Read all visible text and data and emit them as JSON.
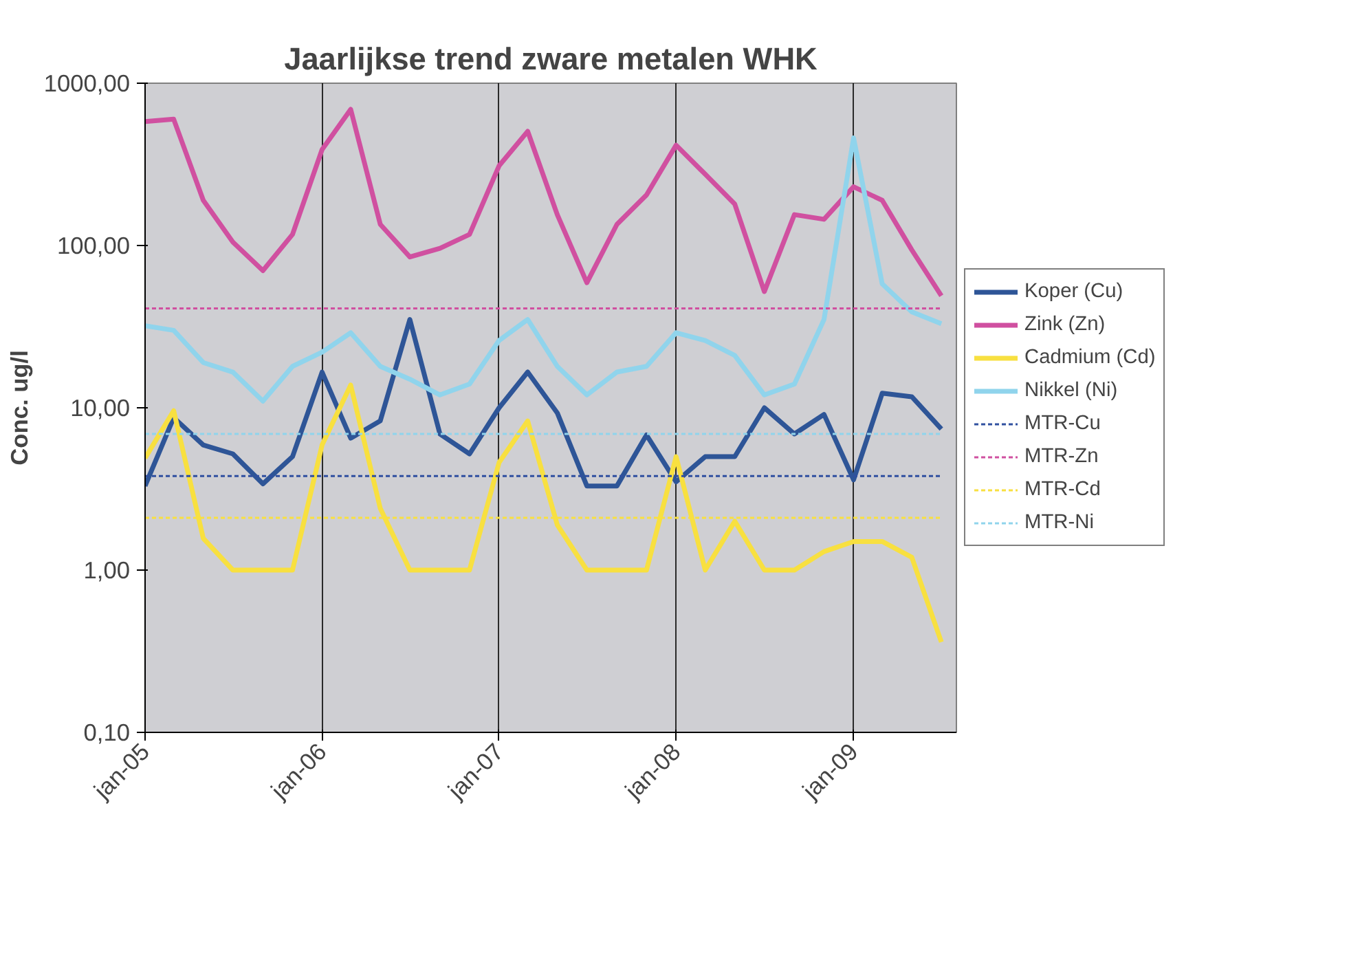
{
  "chart_data": {
    "type": "line",
    "title": "Jaarlijkse trend zware metalen WHK",
    "ylabel": "Conc. ug/l",
    "x": [
      "2005-01",
      "2005-03",
      "2005-05",
      "2005-07",
      "2005-09",
      "2005-11",
      "2006-01",
      "2006-03",
      "2006-05",
      "2006-07",
      "2006-09",
      "2006-11",
      "2007-01",
      "2007-03",
      "2007-05",
      "2007-07",
      "2007-09",
      "2007-11",
      "2008-01",
      "2008-03",
      "2008-05",
      "2008-07",
      "2008-09",
      "2008-11",
      "2009-01",
      "2009-03",
      "2009-05",
      "2009-07"
    ],
    "series": [
      {
        "name": "Koper (Cu)",
        "color": "#2e5597",
        "values": [
          3.3,
          8.7,
          5.9,
          5.2,
          3.4,
          5.0,
          16.6,
          6.5,
          8.3,
          35,
          6.9,
          5.2,
          10,
          16.6,
          9.3,
          3.3,
          3.3,
          6.8,
          3.5,
          5.0,
          5.0,
          10,
          6.9,
          9.1,
          3.6,
          12.3,
          11.7,
          7.4
        ]
      },
      {
        "name": "Zink (Zn)",
        "color": "#d050a0",
        "values": [
          580,
          600,
          190,
          105,
          70,
          117,
          390,
          690,
          135,
          85,
          96,
          117,
          310,
          505,
          155,
          59,
          135,
          205,
          415,
          275,
          180,
          52,
          155,
          145,
          230,
          190,
          94,
          49
        ]
      },
      {
        "name": "Cadmium (Cd)",
        "color": "#f8e040",
        "values": [
          4.9,
          9.6,
          1.57,
          1.0,
          1.0,
          1.0,
          5.9,
          13.8,
          2.4,
          1.0,
          1.0,
          1.0,
          4.6,
          8.3,
          1.9,
          1.0,
          1.0,
          1.0,
          5.0,
          1.0,
          2.0,
          1.0,
          1.0,
          1.3,
          1.5,
          1.5,
          1.2,
          0.36
        ]
      },
      {
        "name": "Nikkel (Ni)",
        "color": "#90d4ec",
        "values": [
          32,
          30,
          19,
          16.6,
          11,
          18,
          22,
          29,
          18,
          15,
          12,
          14,
          26,
          35,
          18,
          12,
          16.6,
          18,
          29,
          26,
          21,
          12,
          14,
          35,
          460,
          58,
          39,
          33
        ]
      },
      {
        "name": "MTR-Cu",
        "color": "#3050a0",
        "line_style": "dashed",
        "values": [
          3.8,
          3.8,
          3.8,
          3.8,
          3.8,
          3.8,
          3.8,
          3.8,
          3.8,
          3.8,
          3.8,
          3.8,
          3.8,
          3.8,
          3.8,
          3.8,
          3.8,
          3.8,
          3.8,
          3.8,
          3.8,
          3.8,
          3.8,
          3.8,
          3.8,
          3.8,
          3.8,
          3.8
        ]
      },
      {
        "name": "MTR-Zn",
        "color": "#d050a0",
        "line_style": "dashed",
        "values": [
          41,
          41,
          41,
          41,
          41,
          41,
          41,
          41,
          41,
          41,
          41,
          41,
          41,
          41,
          41,
          41,
          41,
          41,
          41,
          41,
          41,
          41,
          41,
          41,
          41,
          41,
          41,
          41
        ]
      },
      {
        "name": "MTR-Cd",
        "color": "#f8e040",
        "line_style": "dashed",
        "values": [
          2.1,
          2.1,
          2.1,
          2.1,
          2.1,
          2.1,
          2.1,
          2.1,
          2.1,
          2.1,
          2.1,
          2.1,
          2.1,
          2.1,
          2.1,
          2.1,
          2.1,
          2.1,
          2.1,
          2.1,
          2.1,
          2.1,
          2.1,
          2.1,
          2.1,
          2.1,
          2.1,
          2.1
        ]
      },
      {
        "name": "MTR-Ni",
        "color": "#90d4ec",
        "line_style": "dashed",
        "values": [
          6.9,
          6.9,
          6.9,
          6.9,
          6.9,
          6.9,
          6.9,
          6.9,
          6.9,
          6.9,
          6.9,
          6.9,
          6.9,
          6.9,
          6.9,
          6.9,
          6.9,
          6.9,
          6.9,
          6.9,
          6.9,
          6.9,
          6.9,
          6.9,
          6.9,
          6.9,
          6.9,
          6.9
        ]
      }
    ],
    "xlim": [
      "2005-01",
      "2009-08"
    ],
    "xticks": [
      {
        "value": "2005-01",
        "label": "jan-05"
      },
      {
        "value": "2006-01",
        "label": "jan-06"
      },
      {
        "value": "2007-01",
        "label": "jan-07"
      },
      {
        "value": "2008-01",
        "label": "jan-08"
      },
      {
        "value": "2009-01",
        "label": "jan-09"
      }
    ],
    "ylim": [
      0.1,
      1000
    ],
    "log": true,
    "yticks": [
      {
        "value": 0.1,
        "label": "0,10"
      },
      {
        "value": 1,
        "label": "1,00"
      },
      {
        "value": 10,
        "label": "10,00"
      },
      {
        "value": 100,
        "label": "100,00"
      },
      {
        "value": 1000,
        "label": "1000,00"
      }
    ],
    "grid": "x",
    "legend": "right",
    "marker": "none",
    "line_style": "solid"
  }
}
